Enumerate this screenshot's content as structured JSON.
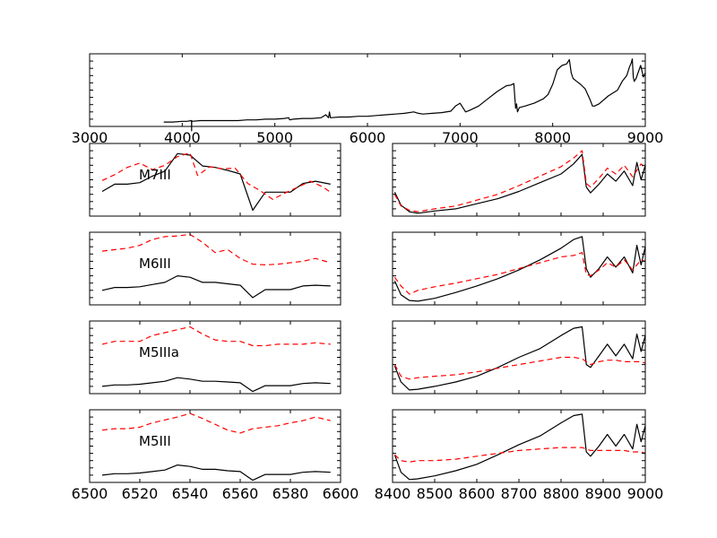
{
  "chart_data": [
    {
      "id": "full",
      "type": "line",
      "xlim": [
        3000,
        9000
      ],
      "xticks": [
        "3000",
        "4000",
        "5000",
        "6000",
        "7000",
        "8000",
        "9000"
      ],
      "ylim": [
        0,
        1
      ],
      "series": [
        {
          "color": "#000000",
          "dashed": false,
          "x": [
            3800,
            3900,
            4000,
            4050,
            4100,
            4101,
            4102,
            4103,
            4200,
            4300,
            4400,
            4500,
            4600,
            4700,
            4800,
            4900,
            5000,
            5100,
            5150,
            5160,
            5200,
            5300,
            5400,
            5500,
            5550,
            5580,
            5590,
            5600,
            5700,
            5800,
            5900,
            6000,
            6100,
            6200,
            6300,
            6400,
            6500,
            6550,
            6600,
            6700,
            6800,
            6900,
            6950,
            7000,
            7030,
            7060,
            7100,
            7200,
            7300,
            7400,
            7500,
            7550,
            7580,
            7600,
            7610,
            7620,
            7640,
            7700,
            7800,
            7900,
            7950,
            8000,
            8050,
            8100,
            8150,
            8180,
            8200,
            8220,
            8240,
            8260,
            8300,
            8350,
            8400,
            8430,
            8450,
            8500,
            8600,
            8700,
            8750,
            8800,
            8830,
            8850,
            8860,
            8870,
            8880,
            8900,
            8950,
            8980,
            9000
          ],
          "y": [
            0.06,
            0.06,
            0.07,
            0.07,
            0.08,
            -0.06,
            0.08,
            0.07,
            0.08,
            0.08,
            0.08,
            0.08,
            0.08,
            0.09,
            0.09,
            0.1,
            0.1,
            0.11,
            0.12,
            0.09,
            0.1,
            0.11,
            0.11,
            0.12,
            0.16,
            0.12,
            0.2,
            0.12,
            0.13,
            0.13,
            0.14,
            0.14,
            0.15,
            0.16,
            0.17,
            0.18,
            0.2,
            0.18,
            0.17,
            0.18,
            0.19,
            0.21,
            0.28,
            0.32,
            0.26,
            0.2,
            0.22,
            0.28,
            0.38,
            0.48,
            0.56,
            0.57,
            0.59,
            0.25,
            0.31,
            0.2,
            0.26,
            0.28,
            0.32,
            0.38,
            0.44,
            0.58,
            0.78,
            0.84,
            0.86,
            0.92,
            0.74,
            0.66,
            0.64,
            0.62,
            0.58,
            0.52,
            0.38,
            0.28,
            0.28,
            0.31,
            0.42,
            0.5,
            0.62,
            0.7,
            0.82,
            0.88,
            0.93,
            0.68,
            0.62,
            0.66,
            0.84,
            0.68,
            0.74
          ]
        }
      ]
    },
    {
      "id": "M7III-blue",
      "type": "line",
      "label": "M7III",
      "xlim": [
        6500,
        6600
      ],
      "ylim": [
        0,
        1
      ],
      "series": [
        {
          "color": "#000000",
          "dashed": false,
          "x": [
            6505,
            6510,
            6515,
            6520,
            6525,
            6530,
            6535,
            6540,
            6545,
            6550,
            6555,
            6560,
            6565,
            6570,
            6575,
            6580,
            6585,
            6590,
            6596
          ],
          "y": [
            0.34,
            0.44,
            0.44,
            0.46,
            0.55,
            0.62,
            0.86,
            0.84,
            0.69,
            0.67,
            0.63,
            0.58,
            0.08,
            0.33,
            0.33,
            0.33,
            0.45,
            0.48,
            0.44
          ]
        },
        {
          "color": "#ff0000",
          "dashed": true,
          "x": [
            6505,
            6510,
            6515,
            6520,
            6525,
            6530,
            6535,
            6540,
            6543,
            6548,
            6553,
            6558,
            6563,
            6568,
            6573,
            6578,
            6583,
            6588,
            6593,
            6596
          ],
          "y": [
            0.49,
            0.57,
            0.67,
            0.73,
            0.64,
            0.7,
            0.82,
            0.87,
            0.56,
            0.68,
            0.65,
            0.66,
            0.45,
            0.35,
            0.23,
            0.32,
            0.4,
            0.48,
            0.4,
            0.33
          ]
        }
      ]
    },
    {
      "id": "M7III-red",
      "type": "line",
      "xlim": [
        8400,
        9000
      ],
      "ylim": [
        0,
        1
      ],
      "series": [
        {
          "color": "#000000",
          "dashed": false,
          "x": [
            8405,
            8420,
            8440,
            8460,
            8500,
            8550,
            8600,
            8650,
            8700,
            8750,
            8800,
            8830,
            8850,
            8860,
            8870,
            8890,
            8910,
            8930,
            8950,
            8970,
            8980,
            8990,
            9000
          ],
          "y": [
            0.33,
            0.15,
            0.06,
            0.04,
            0.07,
            0.1,
            0.17,
            0.24,
            0.34,
            0.46,
            0.58,
            0.72,
            0.85,
            0.4,
            0.32,
            0.44,
            0.58,
            0.48,
            0.62,
            0.42,
            0.74,
            0.5,
            0.7
          ]
        },
        {
          "color": "#ff0000",
          "dashed": true,
          "x": [
            8405,
            8420,
            8440,
            8460,
            8500,
            8550,
            8600,
            8650,
            8700,
            8750,
            8800,
            8830,
            8850,
            8860,
            8870,
            8890,
            8910,
            8930,
            8950,
            8970,
            8990,
            9000
          ],
          "y": [
            0.3,
            0.14,
            0.08,
            0.06,
            0.1,
            0.14,
            0.22,
            0.3,
            0.42,
            0.55,
            0.68,
            0.8,
            0.9,
            0.45,
            0.4,
            0.52,
            0.66,
            0.58,
            0.7,
            0.54,
            0.72,
            0.65
          ]
        }
      ]
    },
    {
      "id": "M6III-blue",
      "type": "line",
      "label": "M6III",
      "xlim": [
        6500,
        6600
      ],
      "ylim": [
        0,
        1
      ],
      "series": [
        {
          "color": "#000000",
          "dashed": false,
          "x": [
            6505,
            6510,
            6515,
            6520,
            6525,
            6530,
            6535,
            6540,
            6545,
            6550,
            6555,
            6560,
            6565,
            6570,
            6575,
            6580,
            6585,
            6590,
            6596
          ],
          "y": [
            0.2,
            0.24,
            0.24,
            0.25,
            0.28,
            0.31,
            0.4,
            0.38,
            0.31,
            0.31,
            0.29,
            0.27,
            0.1,
            0.21,
            0.21,
            0.21,
            0.26,
            0.27,
            0.26
          ]
        },
        {
          "color": "#ff0000",
          "dashed": true,
          "x": [
            6505,
            6510,
            6515,
            6520,
            6525,
            6530,
            6535,
            6540,
            6545,
            6550,
            6555,
            6560,
            6565,
            6570,
            6575,
            6580,
            6585,
            6590,
            6596
          ],
          "y": [
            0.74,
            0.76,
            0.78,
            0.82,
            0.9,
            0.94,
            0.95,
            0.97,
            0.86,
            0.72,
            0.76,
            0.64,
            0.56,
            0.55,
            0.56,
            0.58,
            0.6,
            0.64,
            0.58
          ]
        }
      ]
    },
    {
      "id": "M6III-red",
      "type": "line",
      "xlim": [
        8400,
        9000
      ],
      "ylim": [
        0,
        1
      ],
      "series": [
        {
          "color": "#000000",
          "dashed": false,
          "x": [
            8405,
            8420,
            8440,
            8460,
            8500,
            8550,
            8600,
            8650,
            8700,
            8750,
            8800,
            8830,
            8850,
            8860,
            8870,
            8890,
            8910,
            8930,
            8950,
            8970,
            8980,
            8990,
            9000
          ],
          "y": [
            0.33,
            0.14,
            0.06,
            0.05,
            0.09,
            0.17,
            0.26,
            0.36,
            0.48,
            0.62,
            0.78,
            0.9,
            0.94,
            0.5,
            0.38,
            0.5,
            0.66,
            0.52,
            0.66,
            0.44,
            0.82,
            0.55,
            0.8
          ]
        },
        {
          "color": "#ff0000",
          "dashed": true,
          "x": [
            8405,
            8420,
            8440,
            8460,
            8500,
            8550,
            8600,
            8650,
            8700,
            8750,
            8800,
            8830,
            8850,
            8860,
            8870,
            8890,
            8910,
            8930,
            8950,
            8970,
            8990,
            9000
          ],
          "y": [
            0.38,
            0.26,
            0.15,
            0.2,
            0.25,
            0.3,
            0.36,
            0.42,
            0.5,
            0.58,
            0.66,
            0.68,
            0.72,
            0.42,
            0.4,
            0.48,
            0.58,
            0.52,
            0.62,
            0.48,
            0.62,
            0.6
          ]
        }
      ]
    },
    {
      "id": "M5IIIa-blue",
      "type": "line",
      "label": "M5IIIa",
      "xlim": [
        6500,
        6600
      ],
      "ylim": [
        0,
        1
      ],
      "series": [
        {
          "color": "#000000",
          "dashed": false,
          "x": [
            6505,
            6510,
            6515,
            6520,
            6525,
            6530,
            6535,
            6540,
            6545,
            6550,
            6555,
            6560,
            6565,
            6570,
            6575,
            6580,
            6585,
            6590,
            6596
          ],
          "y": [
            0.1,
            0.12,
            0.12,
            0.13,
            0.15,
            0.17,
            0.22,
            0.2,
            0.17,
            0.17,
            0.16,
            0.15,
            0.03,
            0.11,
            0.11,
            0.11,
            0.14,
            0.15,
            0.14
          ]
        },
        {
          "color": "#ff0000",
          "dashed": true,
          "x": [
            6505,
            6510,
            6515,
            6520,
            6525,
            6530,
            6535,
            6540,
            6545,
            6550,
            6555,
            6560,
            6565,
            6570,
            6575,
            6580,
            6585,
            6590,
            6596
          ],
          "y": [
            0.68,
            0.72,
            0.72,
            0.72,
            0.8,
            0.84,
            0.88,
            0.92,
            0.82,
            0.74,
            0.72,
            0.72,
            0.66,
            0.66,
            0.68,
            0.68,
            0.68,
            0.7,
            0.68
          ]
        }
      ]
    },
    {
      "id": "M5IIIa-red",
      "type": "line",
      "xlim": [
        8400,
        9000
      ],
      "ylim": [
        0,
        1
      ],
      "series": [
        {
          "color": "#000000",
          "dashed": false,
          "x": [
            8405,
            8420,
            8440,
            8460,
            8500,
            8550,
            8600,
            8650,
            8700,
            8750,
            8800,
            8830,
            8850,
            8860,
            8870,
            8890,
            8910,
            8930,
            8950,
            8970,
            8980,
            8990,
            9000
          ],
          "y": [
            0.38,
            0.16,
            0.05,
            0.06,
            0.1,
            0.16,
            0.24,
            0.36,
            0.5,
            0.62,
            0.8,
            0.9,
            0.92,
            0.4,
            0.36,
            0.52,
            0.68,
            0.52,
            0.68,
            0.48,
            0.82,
            0.58,
            0.8
          ]
        },
        {
          "color": "#ff0000",
          "dashed": true,
          "x": [
            8405,
            8420,
            8440,
            8460,
            8500,
            8550,
            8600,
            8650,
            8700,
            8750,
            8800,
            8830,
            8850,
            8860,
            8870,
            8890,
            8910,
            8930,
            8950,
            8970,
            8990,
            9000
          ],
          "y": [
            0.4,
            0.24,
            0.2,
            0.22,
            0.24,
            0.26,
            0.3,
            0.35,
            0.4,
            0.45,
            0.5,
            0.5,
            0.48,
            0.44,
            0.4,
            0.44,
            0.46,
            0.46,
            0.44,
            0.44,
            0.44,
            0.42
          ]
        }
      ]
    },
    {
      "id": "M5III-blue",
      "type": "line",
      "label": "M5III",
      "xlim": [
        6500,
        6600
      ],
      "xticks": [
        "6500",
        "6520",
        "6540",
        "6560",
        "6580",
        "6600"
      ],
      "ylim": [
        0,
        1
      ],
      "series": [
        {
          "color": "#000000",
          "dashed": false,
          "x": [
            6505,
            6510,
            6515,
            6520,
            6525,
            6530,
            6535,
            6540,
            6545,
            6550,
            6555,
            6560,
            6565,
            6570,
            6575,
            6580,
            6585,
            6590,
            6596
          ],
          "y": [
            0.1,
            0.12,
            0.12,
            0.13,
            0.15,
            0.17,
            0.24,
            0.22,
            0.18,
            0.18,
            0.16,
            0.15,
            0.03,
            0.11,
            0.11,
            0.11,
            0.14,
            0.15,
            0.14
          ]
        },
        {
          "color": "#ff0000",
          "dashed": true,
          "x": [
            6505,
            6510,
            6515,
            6520,
            6525,
            6530,
            6535,
            6540,
            6545,
            6550,
            6555,
            6560,
            6565,
            6570,
            6575,
            6580,
            6585,
            6590,
            6596
          ],
          "y": [
            0.72,
            0.74,
            0.74,
            0.76,
            0.82,
            0.86,
            0.9,
            0.95,
            0.88,
            0.8,
            0.72,
            0.68,
            0.74,
            0.76,
            0.78,
            0.82,
            0.85,
            0.9,
            0.85
          ]
        }
      ]
    },
    {
      "id": "M5III-red",
      "type": "line",
      "xlim": [
        8400,
        9000
      ],
      "xticks": [
        "8400",
        "8500",
        "8600",
        "8700",
        "8800",
        "8900",
        "9000"
      ],
      "ylim": [
        0,
        1
      ],
      "series": [
        {
          "color": "#000000",
          "dashed": false,
          "x": [
            8405,
            8420,
            8440,
            8460,
            8500,
            8550,
            8600,
            8650,
            8700,
            8750,
            8800,
            8830,
            8850,
            8860,
            8870,
            8890,
            8910,
            8930,
            8950,
            8970,
            8980,
            8990,
            9000
          ],
          "y": [
            0.38,
            0.14,
            0.04,
            0.05,
            0.09,
            0.16,
            0.25,
            0.38,
            0.52,
            0.64,
            0.82,
            0.92,
            0.94,
            0.42,
            0.36,
            0.5,
            0.66,
            0.5,
            0.66,
            0.46,
            0.8,
            0.56,
            0.78
          ]
        },
        {
          "color": "#ff0000",
          "dashed": true,
          "x": [
            8405,
            8420,
            8440,
            8460,
            8500,
            8550,
            8600,
            8650,
            8700,
            8750,
            8800,
            8830,
            8850,
            8860,
            8870,
            8890,
            8910,
            8930,
            8950,
            8970,
            8990,
            9000
          ],
          "y": [
            0.38,
            0.3,
            0.28,
            0.3,
            0.3,
            0.32,
            0.36,
            0.4,
            0.44,
            0.46,
            0.48,
            0.48,
            0.48,
            0.46,
            0.44,
            0.44,
            0.44,
            0.44,
            0.44,
            0.42,
            0.42,
            0.4
          ]
        }
      ]
    }
  ]
}
